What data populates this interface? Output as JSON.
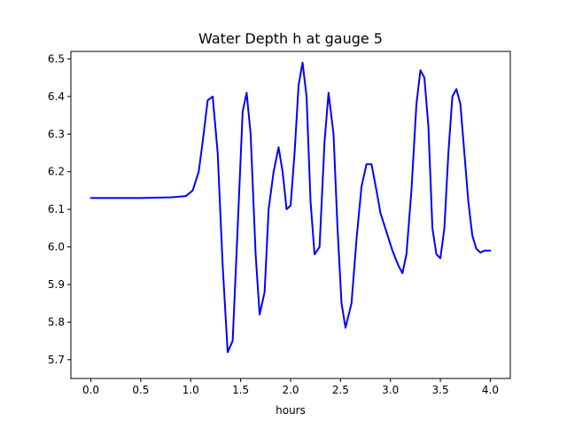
{
  "chart_data": {
    "type": "line",
    "title": "Water Depth h at gauge 5",
    "xlabel": "hours",
    "ylabel": "",
    "xlim": [
      -0.2,
      4.2
    ],
    "ylim": [
      5.65,
      6.52
    ],
    "xticks": [
      0.0,
      0.5,
      1.0,
      1.5,
      2.0,
      2.5,
      3.0,
      3.5,
      4.0
    ],
    "xtick_labels": [
      "0.0",
      "0.5",
      "1.0",
      "1.5",
      "2.0",
      "2.5",
      "3.0",
      "3.5",
      "4.0"
    ],
    "yticks": [
      5.7,
      5.8,
      5.9,
      6.0,
      6.1,
      6.2,
      6.3,
      6.4,
      6.5
    ],
    "ytick_labels": [
      "5.7",
      "5.8",
      "5.9",
      "6.0",
      "6.1",
      "6.2",
      "6.3",
      "6.4",
      "6.5"
    ],
    "grid": false,
    "series": [
      {
        "color": "#0000ff",
        "x": [
          0.0,
          0.5,
          0.8,
          0.95,
          1.02,
          1.08,
          1.12,
          1.17,
          1.22,
          1.27,
          1.32,
          1.37,
          1.42,
          1.47,
          1.52,
          1.56,
          1.6,
          1.65,
          1.69,
          1.74,
          1.78,
          1.83,
          1.88,
          1.92,
          1.96,
          2.0,
          2.04,
          2.08,
          2.12,
          2.16,
          2.2,
          2.24,
          2.29,
          2.34,
          2.38,
          2.43,
          2.47,
          2.51,
          2.55,
          2.61,
          2.66,
          2.71,
          2.76,
          2.81,
          2.86,
          2.9,
          2.96,
          3.02,
          3.08,
          3.12,
          3.16,
          3.21,
          3.26,
          3.3,
          3.34,
          3.38,
          3.42,
          3.46,
          3.5,
          3.54,
          3.58,
          3.62,
          3.66,
          3.7,
          3.74,
          3.78,
          3.82,
          3.86,
          3.9,
          3.94,
          3.98,
          4.0
        ],
        "y": [
          6.13,
          6.13,
          6.132,
          6.135,
          6.15,
          6.2,
          6.28,
          6.39,
          6.4,
          6.25,
          5.95,
          5.72,
          5.75,
          6.05,
          6.36,
          6.41,
          6.3,
          5.98,
          5.82,
          5.88,
          6.1,
          6.2,
          6.265,
          6.2,
          6.1,
          6.11,
          6.25,
          6.43,
          6.49,
          6.4,
          6.12,
          5.98,
          6.0,
          6.28,
          6.41,
          6.3,
          6.05,
          5.85,
          5.785,
          5.85,
          6.02,
          6.16,
          6.22,
          6.22,
          6.15,
          6.09,
          6.04,
          5.99,
          5.95,
          5.93,
          5.98,
          6.15,
          6.38,
          6.47,
          6.45,
          6.32,
          6.05,
          5.98,
          5.97,
          6.05,
          6.25,
          6.4,
          6.42,
          6.38,
          6.25,
          6.12,
          6.03,
          5.995,
          5.985,
          5.99,
          5.99,
          5.99
        ]
      }
    ]
  }
}
